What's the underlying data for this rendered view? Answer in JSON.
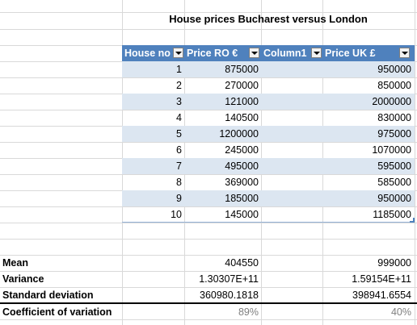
{
  "title": "House prices Bucharest versus London",
  "headers": {
    "house_no": "House no",
    "price_ro": "Price RO €",
    "column1": "Column1",
    "price_uk": "Price UK £"
  },
  "rows": [
    {
      "no": "1",
      "ro": "875000",
      "uk": "950000"
    },
    {
      "no": "2",
      "ro": "270000",
      "uk": "850000"
    },
    {
      "no": "3",
      "ro": "121000",
      "uk": "2000000"
    },
    {
      "no": "4",
      "ro": "140500",
      "uk": "830000"
    },
    {
      "no": "5",
      "ro": "1200000",
      "uk": "975000"
    },
    {
      "no": "6",
      "ro": "245000",
      "uk": "1070000"
    },
    {
      "no": "7",
      "ro": "495000",
      "uk": "595000"
    },
    {
      "no": "8",
      "ro": "369000",
      "uk": "585000"
    },
    {
      "no": "9",
      "ro": "185000",
      "uk": "950000"
    },
    {
      "no": "10",
      "ro": "145000",
      "uk": "1185000"
    }
  ],
  "stats": [
    {
      "label": "Mean",
      "ro": "404550",
      "uk": "999000"
    },
    {
      "label": "Variance",
      "ro": "1.30307E+11",
      "uk": "1.59154E+11"
    },
    {
      "label": "Standard deviation",
      "ro": "360980.1818",
      "uk": "398941.6554"
    },
    {
      "label": "Coefficient of variation",
      "ro": "89%",
      "uk": "40%"
    }
  ]
}
